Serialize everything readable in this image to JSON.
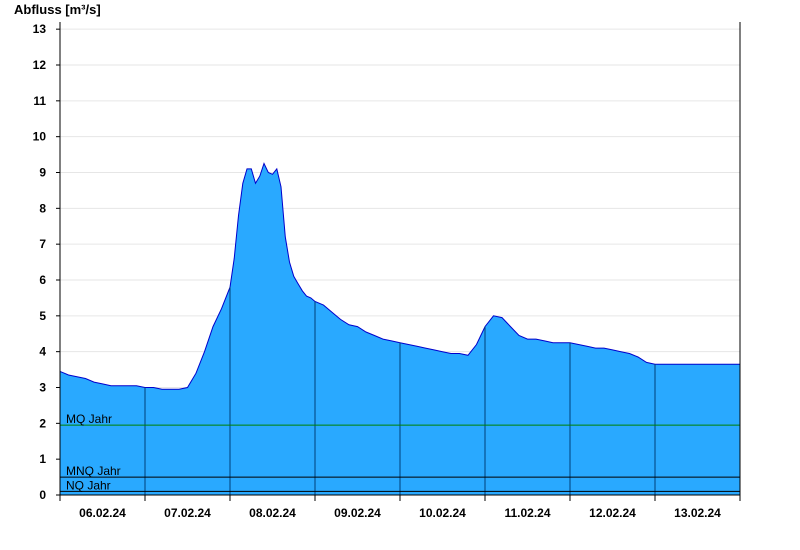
{
  "chart_data": {
    "type": "area",
    "title": "",
    "ylabel": "Abfluss [m³/s]",
    "xlabel": "",
    "ylim": [
      0,
      13.2
    ],
    "xlim": [
      0,
      8.0
    ],
    "yticks": [
      0,
      1,
      2,
      3,
      4,
      5,
      6,
      7,
      8,
      9,
      10,
      11,
      12,
      13
    ],
    "xtick_labels": [
      "06.02.24",
      "07.02.24",
      "08.02.24",
      "09.02.24",
      "10.02.24",
      "11.02.24",
      "12.02.24",
      "13.02.24"
    ],
    "grid": true,
    "series": [
      {
        "x": [
          0.0,
          0.05,
          0.1,
          0.2,
          0.3,
          0.4,
          0.5,
          0.6,
          0.7,
          0.8,
          0.9,
          1.0,
          1.1,
          1.2,
          1.3,
          1.4,
          1.5,
          1.6,
          1.7,
          1.8,
          1.9,
          2.0,
          2.05,
          2.1,
          2.15,
          2.2,
          2.25,
          2.3,
          2.35,
          2.4,
          2.45,
          2.5,
          2.55,
          2.6,
          2.65,
          2.7,
          2.75,
          2.8,
          2.85,
          2.9,
          2.95,
          3.0,
          3.1,
          3.2,
          3.3,
          3.4,
          3.5,
          3.6,
          3.7,
          3.8,
          3.9,
          4.0,
          4.1,
          4.2,
          4.3,
          4.4,
          4.5,
          4.6,
          4.7,
          4.8,
          4.9,
          5.0,
          5.1,
          5.2,
          5.3,
          5.4,
          5.5,
          5.6,
          5.7,
          5.8,
          5.9,
          6.0,
          6.1,
          6.2,
          6.3,
          6.4,
          6.5,
          6.6,
          6.7,
          6.8,
          6.9,
          7.0,
          7.1,
          7.2,
          7.3,
          7.4,
          7.5,
          7.6,
          7.7,
          7.8,
          7.9,
          8.0
        ],
        "y": [
          3.45,
          3.4,
          3.35,
          3.3,
          3.25,
          3.15,
          3.1,
          3.05,
          3.05,
          3.05,
          3.05,
          3.0,
          3.0,
          2.95,
          2.95,
          2.95,
          3.0,
          3.4,
          4.0,
          4.7,
          5.2,
          5.8,
          6.6,
          7.8,
          8.7,
          9.1,
          9.1,
          8.7,
          8.9,
          9.25,
          9.0,
          8.95,
          9.1,
          8.6,
          7.2,
          6.5,
          6.1,
          5.9,
          5.7,
          5.55,
          5.5,
          5.4,
          5.3,
          5.1,
          4.9,
          4.75,
          4.7,
          4.55,
          4.45,
          4.35,
          4.3,
          4.25,
          4.2,
          4.15,
          4.1,
          4.05,
          4.0,
          3.95,
          3.95,
          3.9,
          4.2,
          4.7,
          5.0,
          4.95,
          4.7,
          4.45,
          4.35,
          4.35,
          4.3,
          4.25,
          4.25,
          4.25,
          4.2,
          4.15,
          4.1,
          4.1,
          4.05,
          4.0,
          3.95,
          3.85,
          3.7,
          3.65,
          3.65,
          3.65,
          3.65,
          3.65,
          3.65,
          3.65,
          3.65,
          3.65,
          3.65,
          3.65
        ]
      }
    ],
    "reference_lines": [
      {
        "label": "MQ Jahr",
        "value": 1.95,
        "color": "#008000"
      },
      {
        "label": "MNQ Jahr",
        "value": 0.5,
        "color": "#000000"
      },
      {
        "label": "NQ Jahr",
        "value": 0.1,
        "color": "#000000"
      }
    ],
    "fill_color": "#29a9ff",
    "line_color": "#0000cc"
  }
}
